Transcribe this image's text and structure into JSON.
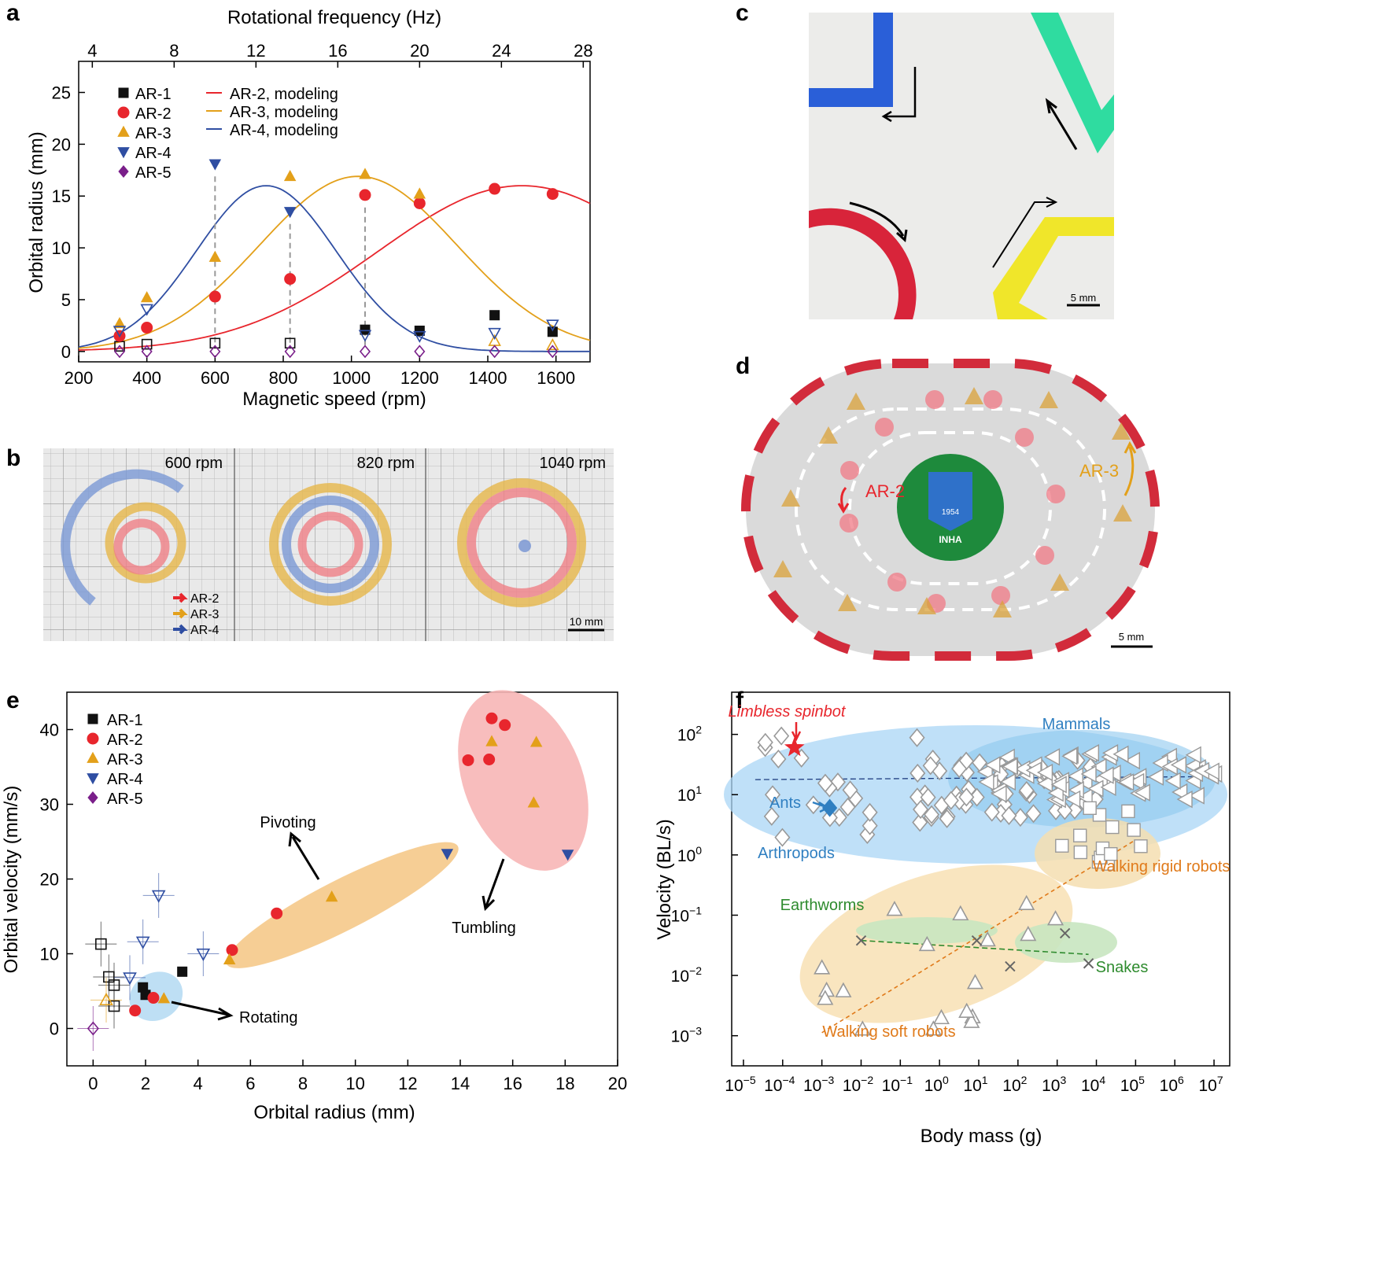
{
  "panels": {
    "a": {
      "letter": "a"
    },
    "b": {
      "letter": "b"
    },
    "c": {
      "letter": "c"
    },
    "d": {
      "letter": "d"
    },
    "e": {
      "letter": "e"
    },
    "f": {
      "letter": "f"
    }
  },
  "colors": {
    "ar1": "#111111",
    "ar2": "#e8262d",
    "ar3": "#e3a01a",
    "ar4": "#2f4ea2",
    "ar5": "#7a1f8a",
    "mod2": "#e8262d",
    "mod3": "#e3a01a",
    "mod4": "#2f4ea2"
  },
  "chart_data": [
    {
      "panel": "a",
      "type": "scatter",
      "xlabel": "Magnetic speed (rpm)",
      "ylabel": "Orbital radius (mm)",
      "x2label": "Rotational frequency (Hz)",
      "xlim": [
        200,
        1700
      ],
      "ylim": [
        -1,
        28
      ],
      "xticks": [
        200,
        400,
        600,
        800,
        1000,
        1200,
        1400,
        1600
      ],
      "yticks": [
        0,
        5,
        10,
        15,
        20,
        25
      ],
      "x2ticks": [
        4,
        8,
        12,
        16,
        20,
        24,
        28
      ],
      "legend": [
        "AR-1",
        "AR-2",
        "AR-3",
        "AR-4",
        "AR-5",
        "AR-2, modeling",
        "AR-3, modeling",
        "AR-4, modeling"
      ],
      "series": [
        {
          "name": "AR-1",
          "filled": [
            [
              1040,
              2.1
            ],
            [
              1200,
              2.0
            ],
            [
              1420,
              3.5
            ],
            [
              1590,
              1.9
            ]
          ],
          "open": [
            [
              320,
              0.5
            ],
            [
              400,
              0.7
            ],
            [
              600,
              0.8
            ],
            [
              820,
              0.8
            ]
          ]
        },
        {
          "name": "AR-2",
          "filled": [
            [
              320,
              1.5
            ],
            [
              400,
              2.3
            ],
            [
              600,
              5.3
            ],
            [
              820,
              7.0
            ],
            [
              1040,
              15.1
            ],
            [
              1200,
              14.3
            ],
            [
              1420,
              15.7
            ],
            [
              1590,
              15.2
            ]
          ],
          "open": []
        },
        {
          "name": "AR-3",
          "filled": [
            [
              320,
              2.7
            ],
            [
              400,
              5.2
            ],
            [
              600,
              9.1
            ],
            [
              820,
              16.9
            ],
            [
              1040,
              17.1
            ],
            [
              1200,
              15.2
            ]
          ],
          "open": [
            [
              1420,
              1.0
            ],
            [
              1590,
              0.6
            ]
          ]
        },
        {
          "name": "AR-4",
          "filled": [
            [
              600,
              18.1
            ],
            [
              820,
              13.5
            ]
          ],
          "open": [
            [
              320,
              2.0
            ],
            [
              400,
              4.1
            ],
            [
              1040,
              1.6
            ],
            [
              1200,
              1.5
            ],
            [
              1420,
              1.8
            ],
            [
              1590,
              2.6
            ]
          ]
        },
        {
          "name": "AR-5",
          "filled": [],
          "open": [
            [
              320,
              0.0
            ],
            [
              400,
              0.0
            ],
            [
              600,
              0.0
            ],
            [
              820,
              0.0
            ],
            [
              1040,
              0.0
            ],
            [
              1200,
              0.0
            ],
            [
              1420,
              0.0
            ],
            [
              1590,
              0.0
            ]
          ]
        }
      ],
      "models": [
        {
          "name": "AR-2, modeling",
          "peak_x": 1500,
          "peak_y": 16,
          "sigma": 420
        },
        {
          "name": "AR-3, modeling",
          "peak_x": 1020,
          "peak_y": 16.9,
          "sigma": 290
        },
        {
          "name": "AR-4, modeling",
          "peak_x": 750,
          "peak_y": 16,
          "sigma": 205
        }
      ],
      "dashed_x": [
        600,
        820,
        1040
      ]
    },
    {
      "panel": "e",
      "type": "scatter",
      "xlabel": "Orbital radius (mm)",
      "ylabel": "Orbital velocity (mm/s)",
      "xlim": [
        -1,
        20
      ],
      "ylim": [
        -5,
        45
      ],
      "xticks": [
        0,
        2,
        4,
        6,
        8,
        10,
        12,
        14,
        16,
        18,
        20
      ],
      "yticks": [
        0,
        10,
        20,
        30,
        40
      ],
      "legend": [
        "AR-1",
        "AR-2",
        "AR-3",
        "AR-4",
        "AR-5"
      ],
      "regions": [
        {
          "label": "Rotating"
        },
        {
          "label": "Pivoting"
        },
        {
          "label": "Tumbling"
        }
      ],
      "series": [
        {
          "name": "AR-1",
          "filled": [
            [
              1.9,
              5.5
            ],
            [
              2.0,
              4.5
            ],
            [
              3.4,
              7.6
            ]
          ],
          "open": [
            [
              0.3,
              11.3
            ],
            [
              0.6,
              6.9
            ],
            [
              0.8,
              5.8
            ],
            [
              0.8,
              3.0
            ]
          ]
        },
        {
          "name": "AR-2",
          "filled": [
            [
              1.6,
              2.4
            ],
            [
              2.3,
              4.1
            ],
            [
              5.3,
              10.5
            ],
            [
              7.0,
              15.4
            ],
            [
              14.3,
              35.9
            ],
            [
              15.1,
              36.0
            ],
            [
              15.2,
              41.5
            ],
            [
              15.7,
              40.6
            ]
          ],
          "open": []
        },
        {
          "name": "AR-3",
          "filled": [
            [
              2.7,
              4.0
            ],
            [
              5.2,
              9.2
            ],
            [
              9.1,
              17.6
            ],
            [
              15.2,
              38.4
            ],
            [
              16.9,
              38.3
            ],
            [
              16.8,
              30.2
            ]
          ],
          "open": [
            [
              0.5,
              3.8
            ]
          ]
        },
        {
          "name": "AR-4",
          "filled": [
            [
              13.5,
              23.4
            ],
            [
              18.1,
              23.3
            ]
          ],
          "open": [
            [
              1.4,
              6.8
            ],
            [
              1.9,
              11.6
            ],
            [
              2.5,
              17.8
            ],
            [
              4.2,
              10.0
            ]
          ]
        },
        {
          "name": "AR-5",
          "filled": [],
          "open": [
            [
              0.0,
              0.0
            ]
          ]
        }
      ]
    },
    {
      "panel": "f",
      "type": "scatter",
      "xlabel": "Body mass (g)",
      "ylabel": "Velocity (BL/s)",
      "xscale": "log",
      "yscale": "log",
      "xlim_exp": [
        -5.3,
        7.4
      ],
      "ylim_exp": [
        -3.5,
        2.7
      ],
      "xticks_exp": [
        -5,
        -4,
        -3,
        -2,
        -1,
        0,
        1,
        2,
        3,
        4,
        5,
        6,
        7
      ],
      "yticks_exp": [
        -3,
        -2,
        -1,
        0,
        1,
        2
      ],
      "groups": [
        "Mammals",
        "Arthropods",
        "Ants",
        "Walking rigid robots",
        "Walking soft robots",
        "Earthworms",
        "Snakes"
      ],
      "highlight": {
        "label": "Limbless spinbot",
        "log_mass": -3.7,
        "log_velocity": 1.78
      },
      "ants_point": {
        "log_mass": -2.8,
        "log_velocity": 0.78
      }
    }
  ],
  "images": {
    "b": {
      "labels": [
        "600 rpm",
        "820 rpm",
        "1040 rpm"
      ],
      "legend": [
        "AR-2",
        "AR-3",
        "AR-4"
      ],
      "scale": "10 mm"
    },
    "c": {
      "scale": "5 mm"
    },
    "d": {
      "labels": [
        "AR-2",
        "AR-3"
      ],
      "logo_year": "1954",
      "logo_name": "INHA",
      "scale": "5 mm"
    }
  }
}
